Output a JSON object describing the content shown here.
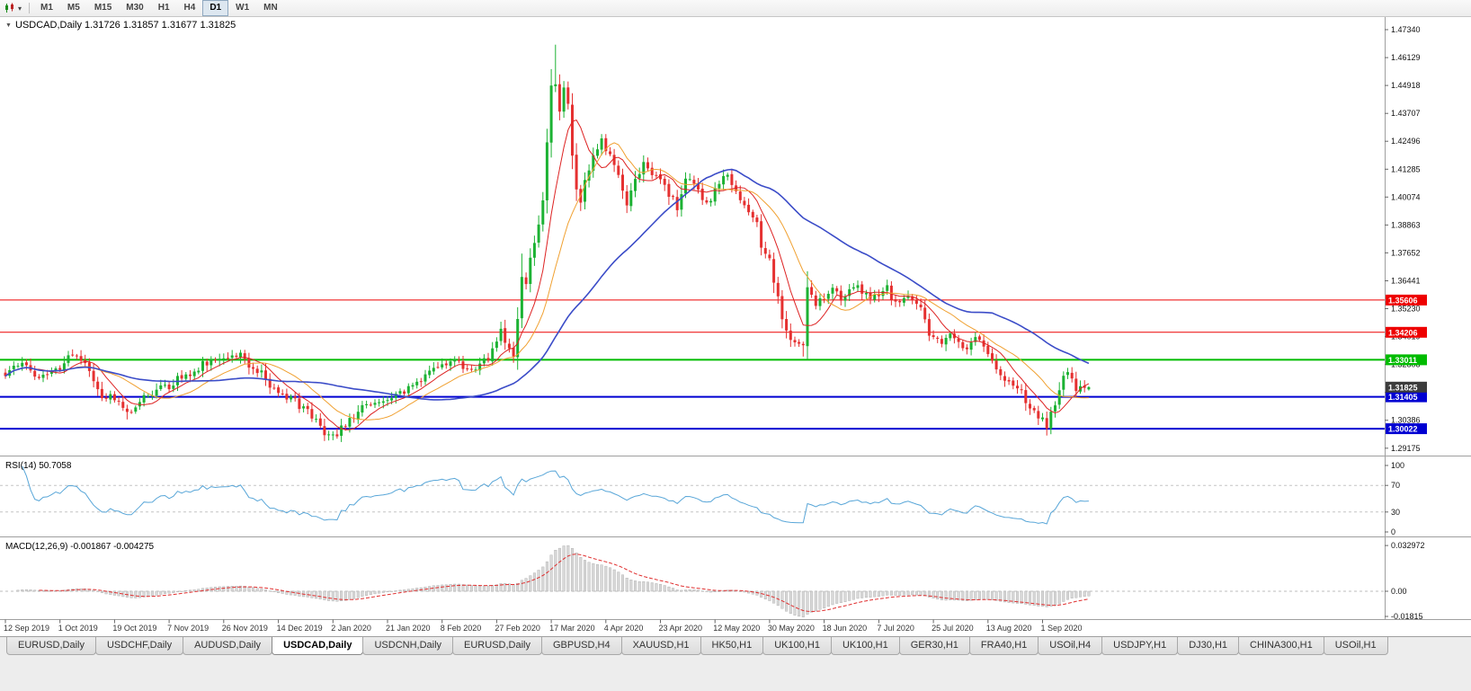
{
  "icons": {
    "symbol_marker": "▼",
    "toolbar_dropdown": "▾",
    "chart_type": "candlestick-icon"
  },
  "toolbar": {
    "timeframes": [
      "M1",
      "M5",
      "M15",
      "M30",
      "H1",
      "H4",
      "D1",
      "W1",
      "MN"
    ],
    "active_timeframe": "D1"
  },
  "chart": {
    "symbol": "USDCAD",
    "period": "Daily",
    "title_text": "USDCAD,Daily 1.31726 1.31857 1.31677 1.31825"
  },
  "rsi": {
    "label": "RSI(14) 50.7058",
    "period": 14,
    "value": 50.7058,
    "line_color": "#58a6d8",
    "levels": [
      100,
      70,
      30,
      0
    ],
    "dashed_levels": [
      70,
      30
    ]
  },
  "macd": {
    "label": "MACD(12,26,9) -0.001867 -0.004275",
    "params": "12,26,9",
    "macd_value": -0.001867,
    "signal_value": -0.004275,
    "axis_labels": [
      "0.032972",
      "0.00",
      "-0.01815"
    ],
    "histogram_color": "#d8d8d8",
    "signal_color": "#e03030"
  },
  "tabs": [
    {
      "label": "EURUSD,Daily",
      "active": false
    },
    {
      "label": "USDCHF,Daily",
      "active": false
    },
    {
      "label": "AUDUSD,Daily",
      "active": false
    },
    {
      "label": "USDCAD,Daily",
      "active": true
    },
    {
      "label": "USDCNH,Daily",
      "active": false
    },
    {
      "label": "EURUSD,Daily",
      "active": false
    },
    {
      "label": "GBPUSD,H4",
      "active": false
    },
    {
      "label": "XAUUSD,H1",
      "active": false
    },
    {
      "label": "HK50,H1",
      "active": false
    },
    {
      "label": "UK100,H1",
      "active": false
    },
    {
      "label": "UK100,H1",
      "active": false
    },
    {
      "label": "GER30,H1",
      "active": false
    },
    {
      "label": "FRA40,H1",
      "active": false
    },
    {
      "label": "USOil,H4",
      "active": false
    },
    {
      "label": "USDJPY,H1",
      "active": false
    },
    {
      "label": "DJ30,H1",
      "active": false
    },
    {
      "label": "CHINA300,H1",
      "active": false
    },
    {
      "label": "USOil,H1",
      "active": false
    }
  ],
  "chart_data": {
    "type": "candlestick",
    "symbol": "USDCAD",
    "timeframe": "Daily",
    "current_bar": {
      "open": 1.31726,
      "high": 1.31857,
      "low": 1.31677,
      "close": 1.31825
    },
    "y_ticks": [
      "1.47340",
      "1.46129",
      "1.44918",
      "1.43707",
      "1.42496",
      "1.41285",
      "1.40074",
      "1.38863",
      "1.37652",
      "1.36441",
      "1.35230",
      "1.34019",
      "1.32808",
      "1.31597",
      "1.30386",
      "1.29175"
    ],
    "y_range": [
      1.29175,
      1.4734
    ],
    "x_labels": [
      "12 Sep 2019",
      "1 Oct 2019",
      "19 Oct 2019",
      "7 Nov 2019",
      "26 Nov 2019",
      "14 Dec 2019",
      "2 Jan 2020",
      "21 Jan 2020",
      "8 Feb 2020",
      "27 Feb 2020",
      "17 Mar 2020",
      "4 Apr 2020",
      "23 Apr 2020",
      "12 May 2020",
      "30 May 2020",
      "18 Jun 2020",
      "7 Jul 2020",
      "25 Jul 2020",
      "13 Aug 2020",
      "1 Sep 2020"
    ],
    "candles_per_xlabel": 13,
    "total_candles": 259,
    "noise": 0.004,
    "up_color": "#1cb233",
    "down_color": "#e53030",
    "close_anchors": [
      [
        0,
        1.3245
      ],
      [
        2,
        1.329
      ],
      [
        5,
        1.3262
      ],
      [
        8,
        1.3228
      ],
      [
        11,
        1.3262
      ],
      [
        13,
        1.3242
      ],
      [
        15,
        1.333
      ],
      [
        18,
        1.3312
      ],
      [
        20,
        1.3242
      ],
      [
        23,
        1.3152
      ],
      [
        26,
        1.3132
      ],
      [
        29,
        1.3058
      ],
      [
        31,
        1.3092
      ],
      [
        34,
        1.3152
      ],
      [
        37,
        1.3172
      ],
      [
        39,
        1.3182
      ],
      [
        41,
        1.3228
      ],
      [
        44,
        1.3246
      ],
      [
        47,
        1.3278
      ],
      [
        50,
        1.3302
      ],
      [
        53,
        1.3298
      ],
      [
        56,
        1.3318
      ],
      [
        58,
        1.3282
      ],
      [
        61,
        1.3242
      ],
      [
        63,
        1.3192
      ],
      [
        65,
        1.3168
      ],
      [
        68,
        1.3132
      ],
      [
        71,
        1.3092
      ],
      [
        74,
        1.3042
      ],
      [
        76,
        1.2988
      ],
      [
        78,
        1.2962
      ],
      [
        80,
        1.3006
      ],
      [
        83,
        1.3058
      ],
      [
        86,
        1.3102
      ],
      [
        89,
        1.3118
      ],
      [
        91,
        1.3132
      ],
      [
        94,
        1.3148
      ],
      [
        97,
        1.3182
      ],
      [
        100,
        1.3238
      ],
      [
        102,
        1.3268
      ],
      [
        104,
        1.3288
      ],
      [
        107,
        1.3292
      ],
      [
        110,
        1.3252
      ],
      [
        113,
        1.3278
      ],
      [
        115,
        1.3308
      ],
      [
        117,
        1.3378
      ],
      [
        118,
        1.3418
      ],
      [
        119,
        1.3378
      ],
      [
        121,
        1.3328
      ],
      [
        123,
        1.3658
      ],
      [
        124,
        1.3612
      ],
      [
        125,
        1.3728
      ],
      [
        126,
        1.3808
      ],
      [
        127,
        1.3888
      ],
      [
        128,
        1.3988
      ],
      [
        129,
        1.4248
      ],
      [
        130,
        1.4478
      ],
      [
        131,
        1.4508
      ],
      [
        132,
        1.4368
      ],
      [
        133,
        1.4478
      ],
      [
        134,
        1.4428
      ],
      [
        135,
        1.4188
      ],
      [
        136,
        1.4028
      ],
      [
        137,
        1.3988
      ],
      [
        138,
        1.4088
      ],
      [
        140,
        1.4178
      ],
      [
        142,
        1.4262
      ],
      [
        143,
        1.4208
      ],
      [
        145,
        1.4148
      ],
      [
        147,
        1.4028
      ],
      [
        148,
        1.3958
      ],
      [
        150,
        1.4078
      ],
      [
        152,
        1.4158
      ],
      [
        154,
        1.4098
      ],
      [
        156,
        1.4088
      ],
      [
        158,
        1.4018
      ],
      [
        160,
        1.3968
      ],
      [
        162,
        1.4078
      ],
      [
        164,
        1.4068
      ],
      [
        166,
        1.3978
      ],
      [
        168,
        1.4008
      ],
      [
        169,
        1.4048
      ],
      [
        171,
        1.4108
      ],
      [
        173,
        1.4068
      ],
      [
        175,
        1.3978
      ],
      [
        177,
        1.3938
      ],
      [
        179,
        1.3888
      ],
      [
        180,
        1.3778
      ],
      [
        182,
        1.3728
      ],
      [
        184,
        1.3568
      ],
      [
        186,
        1.3418
      ],
      [
        188,
        1.3388
      ],
      [
        190,
        1.3348
      ],
      [
        191,
        1.3618
      ],
      [
        193,
        1.3548
      ],
      [
        195,
        1.3558
      ],
      [
        197,
        1.3618
      ],
      [
        199,
        1.3568
      ],
      [
        201,
        1.3598
      ],
      [
        203,
        1.3618
      ],
      [
        205,
        1.3578
      ],
      [
        208,
        1.3568
      ],
      [
        210,
        1.3608
      ],
      [
        212,
        1.3542
      ],
      [
        214,
        1.3558
      ],
      [
        216,
        1.3578
      ],
      [
        218,
        1.3518
      ],
      [
        220,
        1.3412
      ],
      [
        221,
        1.3398
      ],
      [
        223,
        1.3382
      ],
      [
        225,
        1.3418
      ],
      [
        227,
        1.3378
      ],
      [
        229,
        1.3342
      ],
      [
        231,
        1.3388
      ],
      [
        233,
        1.3358
      ],
      [
        234,
        1.3308
      ],
      [
        236,
        1.3252
      ],
      [
        238,
        1.3222
      ],
      [
        240,
        1.3182
      ],
      [
        242,
        1.3158
      ],
      [
        244,
        1.3102
      ],
      [
        246,
        1.3058
      ],
      [
        247,
        1.3038
      ],
      [
        248,
        1.3004
      ],
      [
        249,
        1.3058
      ],
      [
        250,
        1.3108
      ],
      [
        251,
        1.3172
      ],
      [
        252,
        1.3228
      ],
      [
        253,
        1.3256
      ],
      [
        254,
        1.3202
      ],
      [
        255,
        1.3162
      ],
      [
        256,
        1.3186
      ],
      [
        257,
        1.3168
      ],
      [
        258,
        1.31825
      ]
    ],
    "extremes": [
      [
        29,
        null,
        1.3042
      ],
      [
        78,
        null,
        1.2952
      ],
      [
        123,
        1.3762,
        null
      ],
      [
        131,
        1.4669,
        null
      ],
      [
        190,
        null,
        1.3315
      ],
      [
        248,
        null,
        1.2994
      ]
    ],
    "moving_averages": [
      {
        "period": 8,
        "color": "#dd2222",
        "width": 1
      },
      {
        "period": 17,
        "color": "#f0a030",
        "width": 1
      },
      {
        "period": 45,
        "color": "#3b4cc8",
        "width": 1.6
      }
    ],
    "levels": [
      {
        "price": 1.35606,
        "label": "1.35606",
        "color": "#ee0000",
        "width": 1
      },
      {
        "price": 1.34206,
        "label": "1.34206",
        "color": "#ee0000",
        "width": 1
      },
      {
        "price": 1.33011,
        "label": "1.33011",
        "color": "#00bb00",
        "width": 2
      },
      {
        "price": 1.31405,
        "label": "1.31405",
        "color": "#0000d2",
        "width": 2
      },
      {
        "price": 1.30022,
        "label": "1.30022",
        "color": "#0000d2",
        "width": 2
      }
    ],
    "current_price_tag": {
      "price": 1.31825,
      "label": "1.31825",
      "color": "#3c3c3c"
    }
  }
}
